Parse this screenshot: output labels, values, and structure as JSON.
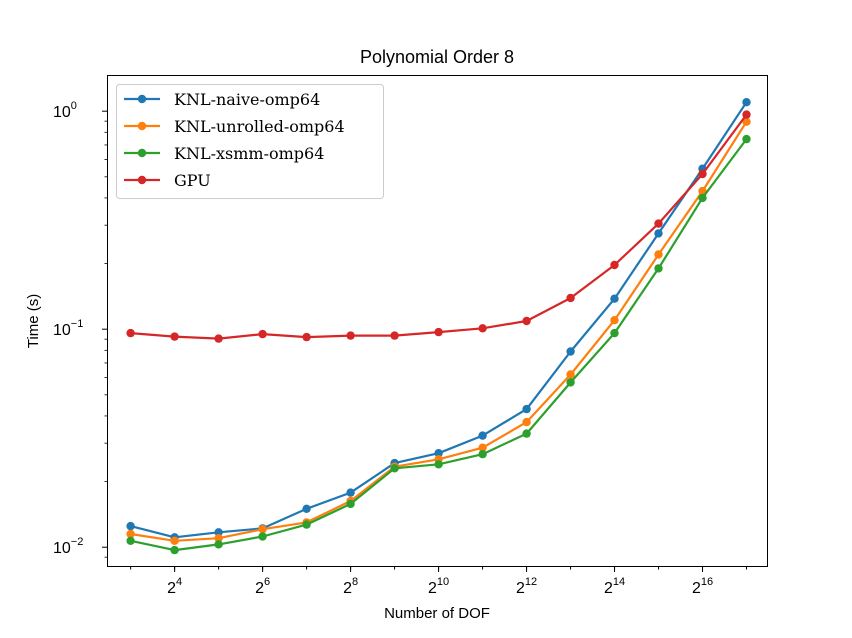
{
  "chart_data": {
    "type": "line",
    "title": "Polynomial Order 8",
    "xlabel": "Number of DOF",
    "ylabel": "Time (s)",
    "x_scale": "log2",
    "y_scale": "log10",
    "xlim": [
      5.6,
      181000
    ],
    "ylim": [
      0.0082,
      1.45
    ],
    "grid": false,
    "legend_position": "top-left",
    "x": [
      8,
      16,
      32,
      64,
      128,
      256,
      512,
      1024,
      2048,
      4096,
      8192,
      16384,
      32768,
      65536,
      131072
    ],
    "x_ticks": [
      {
        "base": "2",
        "exp": "4",
        "value": 16
      },
      {
        "base": "2",
        "exp": "6",
        "value": 64
      },
      {
        "base": "2",
        "exp": "8",
        "value": 256
      },
      {
        "base": "2",
        "exp": "10",
        "value": 1024
      },
      {
        "base": "2",
        "exp": "12",
        "value": 4096
      },
      {
        "base": "2",
        "exp": "14",
        "value": 16384
      },
      {
        "base": "2",
        "exp": "16",
        "value": 65536
      }
    ],
    "y_ticks": [
      {
        "base": "10",
        "exp": "−2",
        "value": 0.01
      },
      {
        "base": "10",
        "exp": "−1",
        "value": 0.1
      },
      {
        "base": "10",
        "exp": "0",
        "value": 1
      }
    ],
    "series": [
      {
        "name": "KNL-naive-omp64",
        "color": "#1f77b4",
        "values": [
          0.0125,
          0.0111,
          0.0117,
          0.0122,
          0.015,
          0.0178,
          0.0243,
          0.027,
          0.0325,
          0.043,
          0.079,
          0.138,
          0.275,
          0.545,
          1.1
        ]
      },
      {
        "name": "KNL-unrolled-omp64",
        "color": "#ff7f0e",
        "values": [
          0.0115,
          0.0107,
          0.011,
          0.0121,
          0.013,
          0.0163,
          0.0234,
          0.0253,
          0.0286,
          0.0375,
          0.062,
          0.11,
          0.22,
          0.43,
          0.895
        ]
      },
      {
        "name": "KNL-xsmm-omp64",
        "color": "#2ca02c",
        "values": [
          0.0107,
          0.0097,
          0.0103,
          0.0112,
          0.0127,
          0.0158,
          0.023,
          0.024,
          0.0267,
          0.0332,
          0.057,
          0.096,
          0.19,
          0.4,
          0.745
        ]
      },
      {
        "name": "GPU",
        "color": "#d62728",
        "values": [
          0.096,
          0.0925,
          0.0905,
          0.095,
          0.092,
          0.0935,
          0.0935,
          0.097,
          0.101,
          0.109,
          0.139,
          0.197,
          0.305,
          0.515,
          0.965
        ]
      }
    ]
  }
}
